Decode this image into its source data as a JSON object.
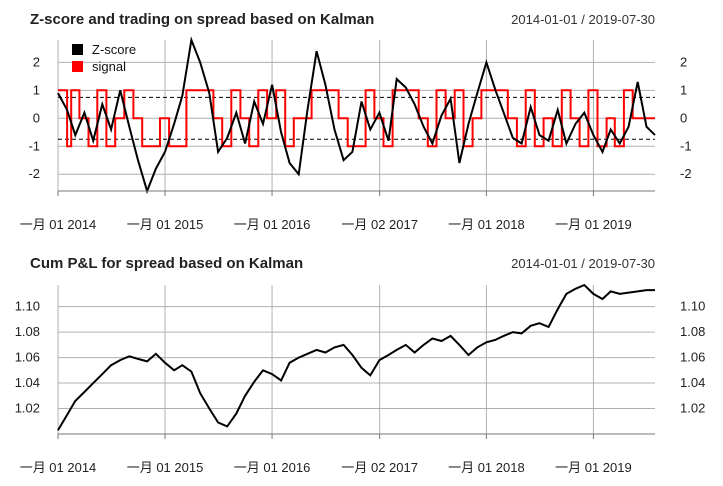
{
  "chart_data": [
    {
      "type": "line",
      "title": "Z-score and trading on spread based on Kalman",
      "date_range": "2014-01-01 / 2019-07-30",
      "x_tick_labels": [
        "一月 01 2014",
        "一月 01 2015",
        "一月 01 2016",
        "一月 02 2017",
        "一月 01 2018",
        "一月 01 2019"
      ],
      "y_ticks": [
        -2,
        -1,
        0,
        1,
        2
      ],
      "ylim": [
        -2.6,
        2.8
      ],
      "dashed_thresholds": [
        0.75,
        -0.75
      ],
      "grid": true,
      "legend_position": "top-left",
      "colors": {
        "zscore": "#000000",
        "signal": "#ff0000",
        "grid": "#b0b0b0"
      },
      "series": [
        {
          "name": "Z-score",
          "x": [
            "2014-01-01",
            "2014-02-01",
            "2014-03-01",
            "2014-04-01",
            "2014-05-01",
            "2014-06-01",
            "2014-07-01",
            "2014-08-01",
            "2014-09-01",
            "2014-10-01",
            "2014-11-01",
            "2014-12-01",
            "2015-01-01",
            "2015-02-01",
            "2015-03-01",
            "2015-04-01",
            "2015-05-01",
            "2015-06-01",
            "2015-07-01",
            "2015-08-01",
            "2015-09-01",
            "2015-10-01",
            "2015-11-01",
            "2015-12-01",
            "2016-01-01",
            "2016-02-01",
            "2016-03-01",
            "2016-04-01",
            "2016-05-01",
            "2016-06-01",
            "2016-07-01",
            "2016-08-01",
            "2016-09-01",
            "2016-10-01",
            "2016-11-01",
            "2016-12-01",
            "2017-01-01",
            "2017-02-01",
            "2017-03-01",
            "2017-04-01",
            "2017-05-01",
            "2017-06-01",
            "2017-07-01",
            "2017-08-01",
            "2017-09-01",
            "2017-10-01",
            "2017-11-01",
            "2017-12-01",
            "2018-01-01",
            "2018-02-01",
            "2018-03-01",
            "2018-04-01",
            "2018-05-01",
            "2018-06-01",
            "2018-07-01",
            "2018-08-01",
            "2018-09-01",
            "2018-10-01",
            "2018-11-01",
            "2018-12-01",
            "2019-01-01",
            "2019-02-01",
            "2019-03-01",
            "2019-04-01",
            "2019-05-01",
            "2019-06-01",
            "2019-07-01",
            "2019-07-30"
          ],
          "values": [
            0.9,
            0.3,
            -0.6,
            0.2,
            -0.8,
            0.5,
            -0.4,
            1.0,
            -0.3,
            -1.5,
            -2.6,
            -1.8,
            -1.2,
            -0.2,
            0.8,
            2.8,
            2.0,
            0.9,
            -1.2,
            -0.7,
            0.2,
            -0.9,
            0.6,
            -0.2,
            1.2,
            -0.5,
            -1.6,
            -2.0,
            0.3,
            2.4,
            1.2,
            -0.4,
            -1.5,
            -1.2,
            0.6,
            -0.4,
            0.2,
            -0.8,
            1.4,
            1.1,
            0.5,
            -0.3,
            -0.9,
            0.1,
            0.7,
            -1.6,
            -0.2,
            0.9,
            2.0,
            1.0,
            0.2,
            -0.7,
            -0.9,
            0.4,
            -0.6,
            -0.8,
            0.3,
            -0.9,
            -0.2,
            0.2,
            -0.6,
            -1.2,
            -0.4,
            -0.9,
            -0.3,
            1.3,
            -0.3,
            -0.6
          ]
        },
        {
          "name": "signal",
          "x": [
            "2014-01-01",
            "2014-02-01",
            "2014-02-15",
            "2014-03-15",
            "2014-04-15",
            "2014-05-15",
            "2014-06-15",
            "2014-07-15",
            "2014-08-15",
            "2014-09-15",
            "2014-10-15",
            "2014-12-15",
            "2015-01-15",
            "2015-02-15",
            "2015-03-15",
            "2015-05-15",
            "2015-06-15",
            "2015-07-15",
            "2015-08-15",
            "2015-09-15",
            "2015-10-15",
            "2015-11-15",
            "2015-12-15",
            "2016-01-15",
            "2016-02-15",
            "2016-03-15",
            "2016-05-15",
            "2016-06-15",
            "2016-08-15",
            "2016-09-15",
            "2016-11-15",
            "2016-12-15",
            "2017-01-15",
            "2017-02-15",
            "2017-03-15",
            "2017-05-15",
            "2017-06-15",
            "2017-07-15",
            "2017-08-15",
            "2017-09-15",
            "2017-10-15",
            "2017-11-15",
            "2017-12-15",
            "2018-02-15",
            "2018-03-15",
            "2018-04-15",
            "2018-05-15",
            "2018-06-15",
            "2018-07-15",
            "2018-08-15",
            "2018-09-15",
            "2018-10-15",
            "2018-11-15",
            "2018-12-15",
            "2019-01-15",
            "2019-02-15",
            "2019-03-15",
            "2019-04-15",
            "2019-05-15",
            "2019-06-15",
            "2019-07-30"
          ],
          "values": [
            1,
            -1,
            1,
            0,
            -1,
            1,
            -1,
            0,
            1,
            0,
            -1,
            0,
            -1,
            -1,
            1,
            1,
            0,
            -1,
            1,
            0,
            -1,
            1,
            0,
            1,
            -1,
            0,
            1,
            1,
            0,
            -1,
            1,
            0,
            -1,
            1,
            1,
            0,
            -1,
            1,
            0,
            1,
            -1,
            0,
            1,
            1,
            0,
            -1,
            1,
            -1,
            0,
            -1,
            1,
            0,
            -1,
            1,
            -1,
            0,
            -1,
            1,
            0,
            0,
            0
          ]
        }
      ]
    },
    {
      "type": "line",
      "title": "Cum P&L for spread based on Kalman",
      "date_range": "2014-01-01 / 2019-07-30",
      "x_tick_labels": [
        "一月 01 2014",
        "一月 01 2015",
        "一月 01 2016",
        "一月 02 2017",
        "一月 01 2018",
        "一月 01 2019"
      ],
      "y_ticks": [
        1.02,
        1.04,
        1.06,
        1.08,
        1.1
      ],
      "ylim": [
        1.0,
        1.117
      ],
      "grid": true,
      "colors": {
        "pnl": "#000000",
        "grid": "#b0b0b0"
      },
      "series": [
        {
          "name": "",
          "x": [
            "2014-01-01",
            "2014-02-01",
            "2014-03-01",
            "2014-04-01",
            "2014-05-01",
            "2014-06-01",
            "2014-07-01",
            "2014-08-01",
            "2014-09-01",
            "2014-10-01",
            "2014-11-01",
            "2014-12-01",
            "2015-01-01",
            "2015-02-01",
            "2015-03-01",
            "2015-04-01",
            "2015-05-01",
            "2015-06-01",
            "2015-07-01",
            "2015-08-01",
            "2015-09-01",
            "2015-10-01",
            "2015-11-01",
            "2015-12-01",
            "2016-01-01",
            "2016-02-01",
            "2016-03-01",
            "2016-04-01",
            "2016-05-01",
            "2016-06-01",
            "2016-07-01",
            "2016-08-01",
            "2016-09-01",
            "2016-10-01",
            "2016-11-01",
            "2016-12-01",
            "2017-01-01",
            "2017-02-01",
            "2017-03-01",
            "2017-04-01",
            "2017-05-01",
            "2017-06-01",
            "2017-07-01",
            "2017-08-01",
            "2017-09-01",
            "2017-10-01",
            "2017-11-01",
            "2017-12-01",
            "2018-01-01",
            "2018-02-01",
            "2018-03-01",
            "2018-04-01",
            "2018-05-01",
            "2018-06-01",
            "2018-07-01",
            "2018-08-01",
            "2018-09-01",
            "2018-10-01",
            "2018-11-01",
            "2018-12-01",
            "2019-01-01",
            "2019-02-01",
            "2019-03-01",
            "2019-04-01",
            "2019-05-01",
            "2019-06-01",
            "2019-07-01",
            "2019-07-30"
          ],
          "values": [
            1.003,
            1.015,
            1.026,
            1.033,
            1.04,
            1.047,
            1.054,
            1.058,
            1.061,
            1.059,
            1.057,
            1.063,
            1.056,
            1.05,
            1.054,
            1.049,
            1.032,
            1.02,
            1.009,
            1.006,
            1.016,
            1.03,
            1.041,
            1.05,
            1.047,
            1.042,
            1.056,
            1.06,
            1.063,
            1.066,
            1.064,
            1.068,
            1.07,
            1.062,
            1.052,
            1.046,
            1.058,
            1.062,
            1.066,
            1.07,
            1.064,
            1.07,
            1.075,
            1.073,
            1.077,
            1.07,
            1.062,
            1.068,
            1.072,
            1.074,
            1.077,
            1.08,
            1.079,
            1.085,
            1.087,
            1.084,
            1.098,
            1.11,
            1.114,
            1.117,
            1.11,
            1.106,
            1.112,
            1.11,
            1.111,
            1.112,
            1.113,
            1.113
          ]
        }
      ]
    }
  ]
}
